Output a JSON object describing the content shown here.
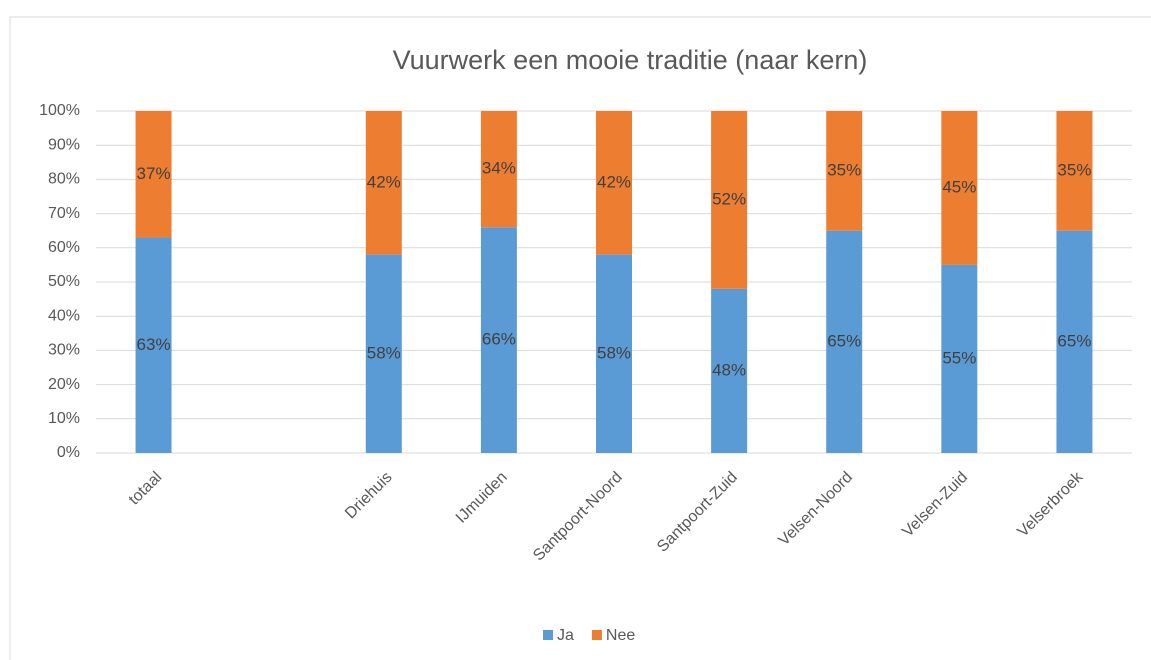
{
  "chart_data": {
    "type": "bar",
    "stacked": true,
    "title": "Vuurwerk een mooie traditie (naar kern)",
    "categories": [
      "totaal",
      null,
      "Driehuis",
      "IJmuiden",
      "Santpoort-Noord",
      "Santpoort-Zuid",
      "Velsen-Noord",
      "Velsen-Zuid",
      "Velserbroek"
    ],
    "series": [
      {
        "name": "Ja",
        "color": "#5b9bd5",
        "values": [
          63,
          null,
          58,
          66,
          58,
          48,
          65,
          55,
          65
        ],
        "value_labels": [
          "63%",
          null,
          "58%",
          "66%",
          "58%",
          "48%",
          "65%",
          "55%",
          "65%"
        ]
      },
      {
        "name": "Nee",
        "color": "#ed7d31",
        "values": [
          37,
          null,
          42,
          34,
          42,
          52,
          35,
          45,
          35
        ],
        "value_labels": [
          "37%",
          null,
          "42%",
          "34%",
          "42%",
          "52%",
          "35%",
          "45%",
          "35%"
        ]
      }
    ],
    "ylim": [
      0,
      100
    ],
    "yticks": [
      {
        "value": 0,
        "label": "0%"
      },
      {
        "value": 10,
        "label": "10%"
      },
      {
        "value": 20,
        "label": "20%"
      },
      {
        "value": 30,
        "label": "30%"
      },
      {
        "value": 40,
        "label": "40%"
      },
      {
        "value": 50,
        "label": "50%"
      },
      {
        "value": 60,
        "label": "60%"
      },
      {
        "value": 70,
        "label": "70%"
      },
      {
        "value": 80,
        "label": "80%"
      },
      {
        "value": 90,
        "label": "90%"
      },
      {
        "value": 100,
        "label": "100%"
      }
    ],
    "grid": true,
    "legend": "bottom"
  }
}
